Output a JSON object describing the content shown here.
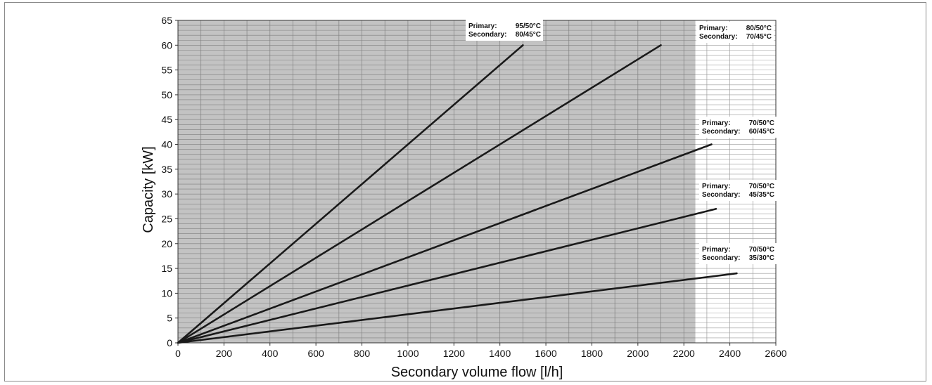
{
  "colors": {
    "shaded_region": "#c3c3c3",
    "grid_on_shade": "#7f7f7f",
    "grid_on_white": "#9a9a9a",
    "line": "#1a1a1a",
    "frame": "#8a8a8a"
  },
  "chart_data": {
    "type": "line",
    "xlabel": "Secondary volume flow [l/h]",
    "ylabel": "Capacity [kW]",
    "xlim": [
      0,
      2600
    ],
    "ylim": [
      0,
      65
    ],
    "xticks": [
      0,
      200,
      400,
      600,
      800,
      1000,
      1200,
      1400,
      1600,
      1800,
      2000,
      2200,
      2400,
      2600
    ],
    "yticks": [
      0,
      5,
      10,
      15,
      20,
      25,
      30,
      35,
      40,
      45,
      50,
      55,
      60,
      65
    ],
    "x_minor_step": 100,
    "y_minor_step": 1,
    "grid": true,
    "shaded_region": {
      "x_from": 0,
      "x_to": 2250
    },
    "series": [
      {
        "points": [
          [
            0,
            0
          ],
          [
            1500,
            60
          ]
        ],
        "annotation": {
          "primary_label": "Primary:",
          "primary_value": "95/50°C",
          "secondary_label": "Secondary:",
          "secondary_value": "80/45°C"
        }
      },
      {
        "points": [
          [
            0,
            0
          ],
          [
            2100,
            60
          ]
        ],
        "annotation": {
          "primary_label": "Primary:",
          "primary_value": "80/50°C",
          "secondary_label": "Secondary:",
          "secondary_value": "70/45°C"
        }
      },
      {
        "points": [
          [
            0,
            0
          ],
          [
            2320,
            40
          ]
        ],
        "annotation": {
          "primary_label": "Primary:",
          "primary_value": "70/50°C",
          "secondary_label": "Secondary:",
          "secondary_value": "60/45°C"
        }
      },
      {
        "points": [
          [
            0,
            0
          ],
          [
            2340,
            27
          ]
        ],
        "annotation": {
          "primary_label": "Primary:",
          "primary_value": "70/50°C",
          "secondary_label": "Secondary:",
          "secondary_value": "45/35°C"
        }
      },
      {
        "points": [
          [
            0,
            0
          ],
          [
            2430,
            14
          ]
        ],
        "annotation": {
          "primary_label": "Primary:",
          "primary_value": "70/50°C",
          "secondary_label": "Secondary:",
          "secondary_value": "35/30°C"
        }
      }
    ]
  }
}
